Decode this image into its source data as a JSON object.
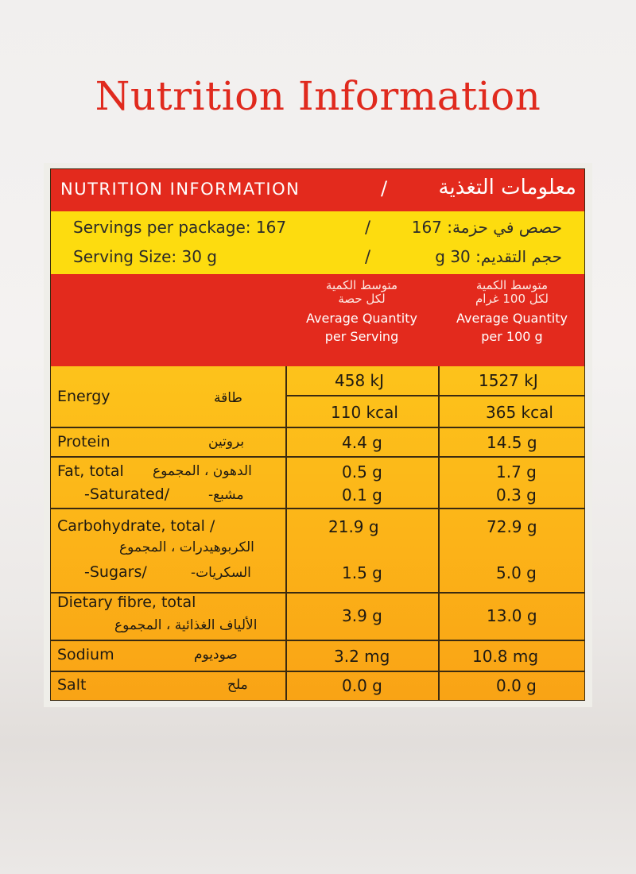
{
  "page_title": "Nutrition Information",
  "label": {
    "header": {
      "en": "NUTRITION INFORMATION",
      "separator": "/",
      "ar": "معلومات التغذية"
    },
    "servings": {
      "en": "Servings per package: 167",
      "separator": "/",
      "ar": "حصص في حزمة: 167"
    },
    "serving_size": {
      "en": "Serving Size: 30 g",
      "separator": "/",
      "ar": "حجم التقديم: 30 g"
    },
    "col_serving": {
      "ar1": "متوسط الكمية",
      "ar2": "لكل حصة",
      "en1": "Average Quantity",
      "en2": "per Serving"
    },
    "col_100g": {
      "ar1": "متوسط الكمية",
      "ar2": "لكل 100 غرام",
      "en1": "Average Quantity",
      "en2": "per 100 g"
    },
    "rows": {
      "energy": {
        "en": "Energy",
        "ar": "طاقة",
        "kj_serving": "458 kJ",
        "kj_100g": "1527 kJ",
        "kcal_serving": "110 kcal",
        "kcal_100g": "365 kcal"
      },
      "protein": {
        "en": "Protein",
        "ar": "بروتين",
        "serving": "4.4 g",
        "per100": "14.5 g"
      },
      "fat": {
        "en": "Fat, total",
        "ar": "الدهون ، المجموع",
        "serving": "0.5 g",
        "per100": "1.7 g"
      },
      "saturated": {
        "en": "-Saturated/",
        "ar": "مشبع-",
        "serving": "0.1 g",
        "per100": "0.3 g"
      },
      "carbohydrate": {
        "en": "Carbohydrate, total /",
        "ar": "الكربوهيدرات ، المجموع",
        "serving": "21.9 g",
        "per100": "72.9 g"
      },
      "sugars": {
        "en": "-Sugars/",
        "ar": "السكريات-",
        "serving": "1.5 g",
        "per100": "5.0 g"
      },
      "fibre": {
        "en": "Dietary fibre, total",
        "ar": "الألياف الغذائية ، المجموع",
        "serving": "3.9 g",
        "per100": "13.0 g"
      },
      "sodium": {
        "en": "Sodium",
        "ar": "صوديوم",
        "serving": "3.2 mg",
        "per100": "10.8 mg"
      },
      "salt": {
        "en": "Salt",
        "ar": "ملح",
        "serving": "0.0 g",
        "per100": "0.0 g"
      }
    }
  },
  "colors": {
    "title": "#e02a1e",
    "header_red": "#e32a1d",
    "band_yellow": "#fddc0f",
    "body_orange": "#fcb418"
  }
}
